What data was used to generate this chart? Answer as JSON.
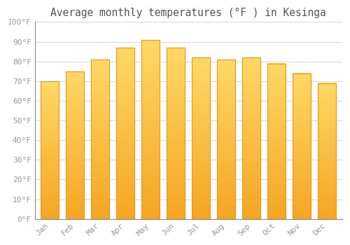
{
  "title": "Average monthly temperatures (°F ) in Kesinga",
  "months": [
    "Jan",
    "Feb",
    "Mar",
    "Apr",
    "May",
    "Jun",
    "Jul",
    "Aug",
    "Sep",
    "Oct",
    "Nov",
    "Dec"
  ],
  "values": [
    70,
    75,
    81,
    87,
    91,
    87,
    82,
    81,
    82,
    79,
    74,
    69
  ],
  "bar_color_bottom": "#F5A623",
  "bar_color_top": "#FFD966",
  "bar_edge_color": "#E8951A",
  "background_color": "#FFFFFF",
  "grid_color": "#D0D0D0",
  "tick_label_color": "#999999",
  "title_color": "#555555",
  "ylim": [
    0,
    100
  ],
  "yticks": [
    0,
    10,
    20,
    30,
    40,
    50,
    60,
    70,
    80,
    90,
    100
  ],
  "ytick_labels": [
    "0°F",
    "10°F",
    "20°F",
    "30°F",
    "40°F",
    "50°F",
    "60°F",
    "70°F",
    "80°F",
    "90°F",
    "100°F"
  ],
  "title_fontsize": 10.5,
  "tick_fontsize": 8,
  "bar_width": 0.72,
  "figsize": [
    5.0,
    3.5
  ],
  "dpi": 100
}
